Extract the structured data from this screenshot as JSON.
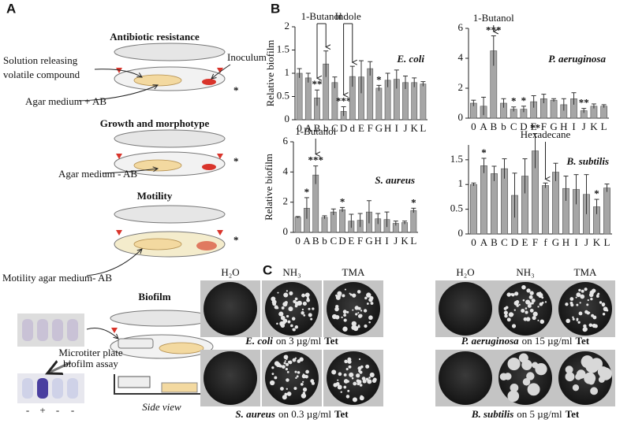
{
  "panel_a": {
    "label": "A",
    "antibiotic_title": "Antibiotic resistance",
    "solution_label": [
      "Solution releasing",
      "volatile compound"
    ],
    "inoculum_label": "Inoculum",
    "asterisks": [
      "*",
      "*",
      "*"
    ],
    "agar_ab_label": "Agar medium + AB",
    "growth_title": "Growth and morphotype",
    "agar_no_ab_label": "Agar medium - AB",
    "motility_title": "Motility",
    "motility_agar_label": "Motility agar medium- AB",
    "biofilm_title": "Biofilm",
    "microtiter_label": [
      "Microtiter plate",
      "biofilm assay"
    ],
    "well_signs": [
      "-",
      "+",
      "-",
      "-"
    ],
    "side_view_label": "Side view"
  },
  "panel_b_label": "B",
  "chart_data": [
    {
      "type": "bar",
      "title": "E. coli",
      "ylabel": "Relative biofilm",
      "color": "#a6a6a6",
      "categories": [
        "0",
        "A",
        "B",
        "b",
        "C",
        "D",
        "d",
        "E",
        "F",
        "G",
        "H",
        "I",
        "J",
        "K",
        "L"
      ],
      "values": [
        1.0,
        0.9,
        0.47,
        1.2,
        0.8,
        0.18,
        0.93,
        0.92,
        1.1,
        0.68,
        0.85,
        0.87,
        0.8,
        0.8,
        0.77
      ],
      "errors": [
        0.1,
        0.1,
        0.17,
        0.28,
        0.12,
        0.1,
        0.22,
        0.35,
        0.15,
        0.06,
        0.15,
        0.2,
        0.14,
        0.1,
        0.05
      ],
      "significance": [
        null,
        null,
        "**",
        null,
        null,
        "***",
        null,
        null,
        null,
        "*",
        null,
        null,
        null,
        null,
        null
      ],
      "annotations": [
        {
          "text": "1-Butanol",
          "targets": [
            "B",
            "b"
          ]
        },
        {
          "text": "Indole",
          "targets": [
            "D",
            "d"
          ]
        }
      ],
      "ylim": [
        0,
        2
      ],
      "yticks": [
        0,
        0.5,
        1,
        1.5,
        2
      ]
    },
    {
      "type": "bar",
      "title": "P. aeruginosa",
      "color": "#a6a6a6",
      "categories": [
        "0",
        "A",
        "B",
        "b",
        "C",
        "D",
        "E",
        "F",
        "G",
        "H",
        "I",
        "J",
        "K",
        "L"
      ],
      "values": [
        1.0,
        0.8,
        4.5,
        1.0,
        0.6,
        0.6,
        1.1,
        1.3,
        1.2,
        0.9,
        1.3,
        0.5,
        0.8,
        0.8
      ],
      "errors": [
        0.2,
        0.6,
        1.0,
        0.3,
        0.15,
        0.2,
        0.4,
        0.3,
        0.1,
        0.4,
        0.4,
        0.15,
        0.15,
        0.1
      ],
      "significance": [
        null,
        null,
        "***",
        null,
        "*",
        "*",
        null,
        null,
        null,
        null,
        null,
        "**",
        null,
        null
      ],
      "annotations": [
        {
          "text": "1-Butanol",
          "targets": [
            "B"
          ]
        }
      ],
      "ylim": [
        0,
        6
      ],
      "yticks": [
        0,
        2,
        4,
        6
      ]
    },
    {
      "type": "bar",
      "title": "S. aureus",
      "ylabel": "Relative biofilm",
      "color": "#a6a6a6",
      "categories": [
        "0",
        "A",
        "B",
        "b",
        "C",
        "D",
        "E",
        "F",
        "G",
        "H",
        "I",
        "J",
        "K",
        "L"
      ],
      "values": [
        1.0,
        1.6,
        3.8,
        1.0,
        1.35,
        1.5,
        0.75,
        0.8,
        1.35,
        0.9,
        0.85,
        0.6,
        0.65,
        1.45
      ],
      "errors": [
        0.05,
        0.7,
        0.6,
        0.1,
        0.2,
        0.15,
        0.45,
        0.45,
        0.75,
        0.35,
        0.5,
        0.15,
        0.1,
        0.15
      ],
      "significance": [
        null,
        "*",
        "***",
        null,
        null,
        "*",
        null,
        null,
        null,
        null,
        null,
        null,
        null,
        "*"
      ],
      "annotations": [
        {
          "text": "1-Butanol",
          "targets": [
            "B"
          ]
        }
      ],
      "ylim": [
        0,
        6
      ],
      "yticks": [
        0,
        2,
        4,
        6
      ]
    },
    {
      "type": "bar",
      "title": "B. subtilis",
      "color": "#a6a6a6",
      "categories": [
        "0",
        "A",
        "B",
        "C",
        "D",
        "E",
        "F",
        "f",
        "G",
        "H",
        "I",
        "J",
        "K",
        "L"
      ],
      "values": [
        1.0,
        1.38,
        1.22,
        1.32,
        0.78,
        1.17,
        1.68,
        0.98,
        1.25,
        0.92,
        0.9,
        0.8,
        0.55,
        0.93
      ],
      "errors": [
        0.03,
        0.15,
        0.15,
        0.2,
        0.45,
        0.35,
        0.35,
        0.05,
        0.18,
        0.25,
        0.3,
        0.4,
        0.15,
        0.08
      ],
      "significance": [
        null,
        "*",
        null,
        null,
        null,
        null,
        "**",
        null,
        null,
        null,
        null,
        null,
        "*",
        null
      ],
      "annotations": [
        {
          "text": "Hexadecane",
          "targets": [
            "f"
          ]
        }
      ],
      "ylim": [
        0,
        1.8
      ],
      "yticks": [
        0,
        0.5,
        1,
        1.5
      ]
    }
  ],
  "panel_c": {
    "label": "C",
    "columns": [
      "H₂O",
      "NH₃",
      "TMA"
    ],
    "captions": [
      {
        "organism": "E. coli",
        "condition": "on 3 µg/ml",
        "drug": "Tet"
      },
      {
        "organism": "P. aeruginosa",
        "condition": "on 15 µg/ml",
        "drug": "Tet"
      },
      {
        "organism": "S. aureus",
        "condition": "on 0.3 µg/ml",
        "drug": "Tet"
      },
      {
        "organism": "B. subtilis",
        "condition": "on 5 µg/ml",
        "drug": "Tet"
      }
    ]
  }
}
